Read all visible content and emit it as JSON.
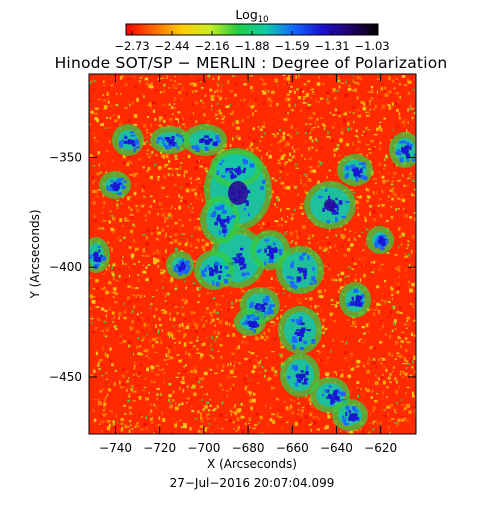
{
  "colorbar": {
    "title_main": "Log",
    "title_sub": "10",
    "tick_labels": [
      "−2.73",
      "−2.44",
      "−2.16",
      "−1.88",
      "−1.59",
      "−1.31",
      "−1.03"
    ],
    "colormap": [
      "#ff0000",
      "#ff6a00",
      "#ffcc00",
      "#c8ee22",
      "#22cc44",
      "#11ccaa",
      "#1166ff",
      "#1a10d0",
      "#22006a",
      "#000000"
    ]
  },
  "plot": {
    "title": "Hinode SOT/SP − MERLIN : Degree of Polarization",
    "x_axis": {
      "title": "X (Arcseconds)",
      "range": [
        -752,
        -604
      ],
      "tick_values": [
        -740,
        -720,
        -700,
        -680,
        -660,
        -640,
        -620
      ],
      "tick_labels": [
        "−740",
        "−720",
        "−700",
        "−680",
        "−660",
        "−640",
        "−620"
      ]
    },
    "y_axis": {
      "title": "Y (Arcseconds)",
      "range": [
        -476,
        -312
      ],
      "tick_values": [
        -350,
        -400,
        -450
      ],
      "tick_labels": [
        "−350",
        "−400",
        "−450"
      ]
    }
  },
  "footer": {
    "timestamp": "27−Jul−2016 20:07:04.099"
  }
}
